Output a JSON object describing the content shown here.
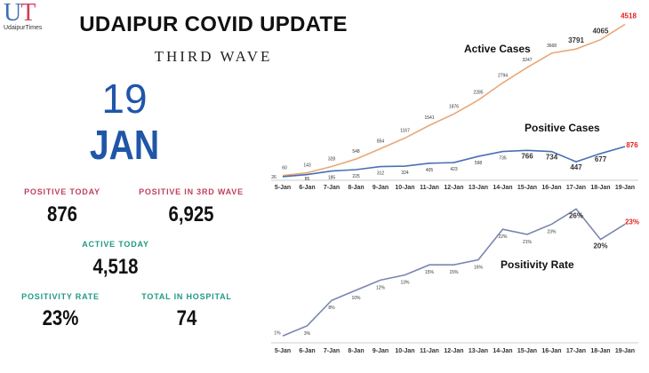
{
  "logo": {
    "letters": "UT",
    "name": "UdaipurTimes"
  },
  "header": {
    "title": "UDAIPUR COVID UPDATE",
    "subtitle": "THIRD WAVE",
    "day": "19",
    "month": "JAN"
  },
  "stats": {
    "positive_today": {
      "label": "POSITIVE TODAY",
      "value": "876"
    },
    "positive_wave": {
      "label": "POSITIVE IN 3RD WAVE",
      "value": "6,925"
    },
    "active_today": {
      "label": "ACTIVE TODAY",
      "value": "4,518"
    },
    "positivity_rate": {
      "label": "POSITIVITY RATE",
      "value": "23%"
    },
    "hospital": {
      "label": "TOTAL IN HOSPITAL",
      "value": "74"
    }
  },
  "colors": {
    "active": "#e8a878",
    "positive": "#4a6fb5",
    "rate": "#7a86b0",
    "highlight": "#e02020"
  },
  "chart_data": [
    {
      "type": "line",
      "categories": [
        "5-Jan",
        "6-Jan",
        "7-Jan",
        "8-Jan",
        "9-Jan",
        "10-Jan",
        "11-Jan",
        "12-Jan",
        "13-Jan",
        "14-Jan",
        "15-Jan",
        "16-Jan",
        "17-Jan",
        "18-Jan",
        "19-Jan"
      ],
      "series": [
        {
          "name": "Active Cases",
          "values": [
            60,
            143,
            328,
            548,
            854,
            1167,
            1541,
            1876,
            2285,
            2794,
            3247,
            3668,
            3791,
            4065,
            4518
          ]
        },
        {
          "name": "Positive Cases",
          "values": [
            26,
            85,
            185,
            225,
            312,
            324,
            405,
            423,
            598,
            735,
            766,
            734,
            447,
            677,
            876
          ]
        }
      ],
      "grid": false
    },
    {
      "type": "line",
      "categories": [
        "5-Jan",
        "6-Jan",
        "7-Jan",
        "8-Jan",
        "9-Jan",
        "10-Jan",
        "11-Jan",
        "12-Jan",
        "13-Jan",
        "14-Jan",
        "15-Jan",
        "16-Jan",
        "17-Jan",
        "18-Jan",
        "19-Jan"
      ],
      "series": [
        {
          "name": "Positivity Rate",
          "values": [
            1,
            3,
            8,
            10,
            12,
            13,
            15,
            15,
            16,
            22,
            21,
            23,
            26,
            20,
            23
          ]
        }
      ],
      "unit": "%",
      "grid": false
    }
  ]
}
